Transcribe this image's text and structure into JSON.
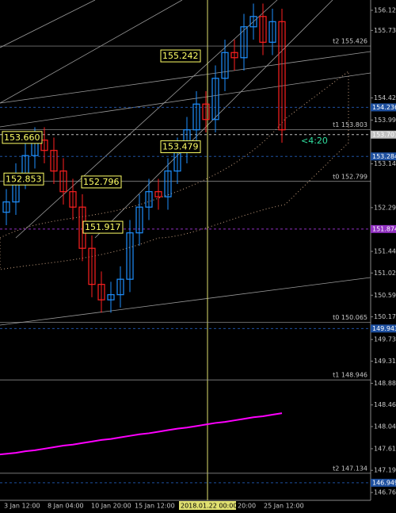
{
  "chart_data": {
    "type": "candlestick",
    "ylim": [
      146.47,
      156.32
    ],
    "yticks": [
      {
        "value": 156.12,
        "label": "156.120"
      },
      {
        "value": 155.73,
        "label": "155.730"
      },
      {
        "value": 154.42,
        "label": "154.420"
      },
      {
        "value": 153.99,
        "label": "153.990"
      },
      {
        "value": 153.14,
        "label": "153.140"
      },
      {
        "value": 152.29,
        "label": "152.290"
      },
      {
        "value": 151.44,
        "label": "151.440"
      },
      {
        "value": 151.021,
        "label": "151.021"
      },
      {
        "value": 150.59,
        "label": "150.590"
      },
      {
        "value": 150.17,
        "label": "150.170"
      },
      {
        "value": 149.73,
        "label": "149.730"
      },
      {
        "value": 149.31,
        "label": "149.310"
      },
      {
        "value": 148.88,
        "label": "148.880"
      },
      {
        "value": 148.46,
        "label": "148.460"
      },
      {
        "value": 148.04,
        "label": "148.040"
      },
      {
        "value": 147.61,
        "label": "147.610"
      },
      {
        "value": 147.19,
        "label": "147.190"
      },
      {
        "value": 146.76,
        "label": "146.760"
      }
    ],
    "x_labels": [
      "3 Jan 12:00",
      "8 Jan 04:00",
      "10 Jan 20:00",
      "15 Jan 12:00",
      "2018.01.22 00:00",
      "20:00",
      "25 Jan 12:00"
    ],
    "up_color": "#1e90ff",
    "down_color": "#ff2020",
    "open": [
      152.2,
      152.4,
      152.9,
      153.3,
      153.6,
      153.4,
      153.0,
      152.6,
      152.3,
      151.5,
      150.8,
      150.5,
      150.6,
      150.9,
      151.8,
      152.3,
      152.6,
      152.5,
      153.0,
      153.4,
      153.8,
      154.3,
      154.0,
      154.8,
      155.3,
      155.2,
      155.8,
      156.0,
      155.5,
      155.9
    ],
    "high": [
      152.65,
      153.15,
      153.55,
      153.85,
      153.85,
      153.65,
      153.25,
      152.85,
      152.55,
      151.75,
      151.05,
      150.85,
      151.15,
      152.05,
      152.55,
      152.85,
      152.85,
      153.25,
      153.65,
      154.05,
      154.55,
      154.55,
      155.05,
      155.55,
      155.55,
      156.05,
      156.25,
      156.25,
      156.15,
      156.15
    ],
    "low": [
      151.95,
      152.15,
      152.65,
      153.05,
      153.15,
      152.75,
      152.35,
      152.05,
      151.25,
      150.55,
      150.25,
      150.25,
      150.35,
      150.65,
      151.55,
      152.05,
      152.25,
      152.25,
      152.75,
      153.15,
      153.55,
      153.75,
      153.75,
      154.55,
      154.95,
      154.95,
      155.55,
      155.25,
      155.25,
      153.55
    ],
    "close": [
      152.4,
      152.9,
      153.3,
      153.6,
      153.4,
      153.0,
      152.6,
      152.3,
      151.5,
      150.8,
      150.5,
      150.6,
      150.9,
      151.8,
      152.3,
      152.6,
      152.5,
      153.0,
      153.4,
      153.8,
      154.3,
      154.0,
      154.8,
      155.3,
      155.2,
      155.8,
      156.0,
      155.5,
      155.9,
      153.8
    ],
    "moving_average": {
      "color": "#ff00ff",
      "values": [
        147.5,
        147.53,
        147.56,
        147.58,
        147.61,
        147.64,
        147.67,
        147.69,
        147.72,
        147.75,
        147.78,
        147.8,
        147.83,
        147.86,
        147.89,
        147.91,
        147.94,
        147.97,
        148.0,
        148.02,
        148.05,
        148.08,
        148.11,
        148.13,
        148.16,
        148.19,
        148.22,
        148.24,
        148.27,
        148.3
      ]
    },
    "levels": [
      {
        "label": "t2 155.426",
        "value": 155.426
      },
      {
        "label": "t1 153.803",
        "value": 153.803
      },
      {
        "label": "t0 152.799",
        "value": 152.799
      },
      {
        "label": "t0 150.065",
        "value": 150.065
      },
      {
        "label": "t1 148.946",
        "value": 148.946
      },
      {
        "label": "t2 147.134",
        "value": 147.134
      }
    ],
    "price_boxes": [
      {
        "label": "154.236",
        "value": 154.236,
        "color": "#1e50a0"
      },
      {
        "label": "153.707",
        "value": 153.707,
        "color": "#c0c0c0"
      },
      {
        "label": "153.284",
        "value": 153.284,
        "color": "#1e50a0"
      },
      {
        "label": "151.874",
        "value": 151.874,
        "color": "#9030c0"
      },
      {
        "label": "149.943",
        "value": 149.943,
        "color": "#1e50a0"
      },
      {
        "label": "146.949",
        "value": 146.949,
        "color": "#1e50a0"
      }
    ],
    "annotations": [
      {
        "label": "155.242",
        "value": 155.242
      },
      {
        "label": "153.660",
        "value": 153.66
      },
      {
        "label": "153.479",
        "value": 153.479
      },
      {
        "label": "152.853",
        "value": 152.853
      },
      {
        "label": "152.796",
        "value": 152.796
      },
      {
        "label": "151.917",
        "value": 151.917
      }
    ],
    "timer": "<4:20"
  }
}
